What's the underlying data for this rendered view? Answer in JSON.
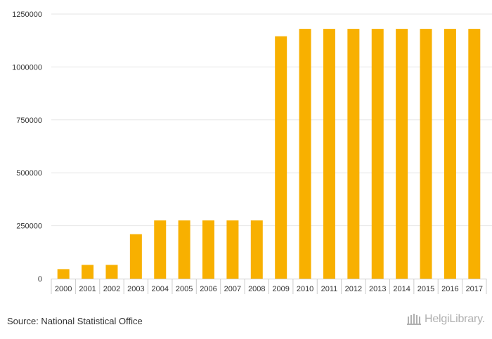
{
  "chart_data": {
    "type": "bar",
    "categories": [
      "2000",
      "2001",
      "2002",
      "2003",
      "2004",
      "2005",
      "2006",
      "2007",
      "2008",
      "2009",
      "2010",
      "2011",
      "2012",
      "2013",
      "2014",
      "2015",
      "2016",
      "2017"
    ],
    "values": [
      45000,
      65000,
      65000,
      210000,
      275000,
      275000,
      275000,
      275000,
      275000,
      1145000,
      1180000,
      1180000,
      1180000,
      1180000,
      1180000,
      1180000,
      1180000,
      1180000
    ],
    "y_ticks": [
      0,
      250000,
      500000,
      750000,
      1000000,
      1250000
    ],
    "ylim": [
      0,
      1250000
    ],
    "bar_color": "#f8b000",
    "grid": true,
    "title": "",
    "xlabel": "",
    "ylabel": ""
  },
  "footer": {
    "source": "Source: National Statistical Office",
    "brand": "HelgiLibrary."
  },
  "colors": {
    "grid": "#e6e6e6",
    "axis": "#cccccc",
    "text": "#333333",
    "brand": "#b0b0b0"
  },
  "icons": {
    "brand_logo": "library-building-icon"
  }
}
